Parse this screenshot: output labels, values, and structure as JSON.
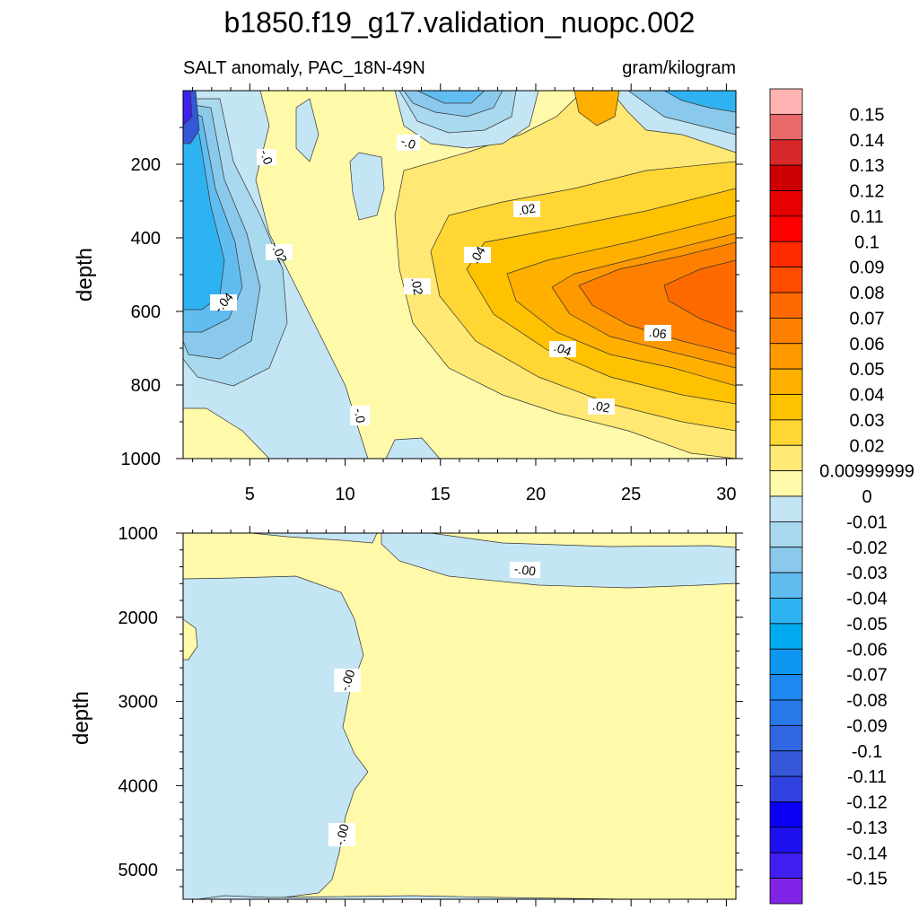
{
  "chart_data": {
    "type": "contour",
    "title": "b1850.f19_g17.validation_nuopc.002",
    "subtitle_left": "SALT anomaly, PAC_18N-49N",
    "subtitle_right": "gram/kilogram",
    "panels": [
      {
        "ylabel": "depth",
        "xlim": [
          1.5,
          30.5
        ],
        "ylim": [
          1000,
          0
        ],
        "ytick_labels": [
          "200",
          "400",
          "600",
          "800",
          "1000"
        ],
        "xtick_labels": [
          "5",
          "10",
          "15",
          "20",
          "25",
          "30"
        ],
        "contour_labels": [
          "-.0",
          "-.0",
          "-.02",
          "-.04",
          ".02",
          ".04",
          ".02",
          ".04",
          ".06",
          ".02",
          "-.0"
        ]
      },
      {
        "ylabel": "depth",
        "ylim": [
          5350,
          1000
        ],
        "ytick_labels": [
          "1000",
          "2000",
          "3000",
          "4000",
          "5000"
        ],
        "contour_labels": [
          "-.00",
          "-.00",
          "-.00"
        ]
      }
    ],
    "colorbar": {
      "levels": [
        "0.15",
        "0.14",
        "0.13",
        "0.12",
        "0.11",
        "0.1",
        "0.09",
        "0.08",
        "0.07",
        "0.06",
        "0.05",
        "0.04",
        "0.03",
        "0.02",
        "0.00999999",
        "0",
        "-0.01",
        "-0.02",
        "-0.03",
        "-0.04",
        "-0.05",
        "-0.06",
        "-0.07",
        "-0.08",
        "-0.09",
        "-0.1",
        "-0.11",
        "-0.12",
        "-0.13",
        "-0.14",
        "-0.15"
      ],
      "colors": [
        "#ffb3b3",
        "#e86a6a",
        "#d62828",
        "#cc0000",
        "#e60000",
        "#ff0000",
        "#ff2a00",
        "#ff4d00",
        "#ff6a00",
        "#ff8000",
        "#ff9900",
        "#ffb000",
        "#ffc200",
        "#ffd633",
        "#ffe873",
        "#fff9aa",
        "#c4e5f4",
        "#a9d9ef",
        "#8ac9eb",
        "#61bdf0",
        "#2fb2f1",
        "#00aaee",
        "#0f96f0",
        "#1e88f0",
        "#2878e8",
        "#3066e0",
        "#3558d8",
        "#2f42e0",
        "#0a00f5",
        "#1e10f0",
        "#4020f0",
        "#8025e8"
      ]
    }
  }
}
